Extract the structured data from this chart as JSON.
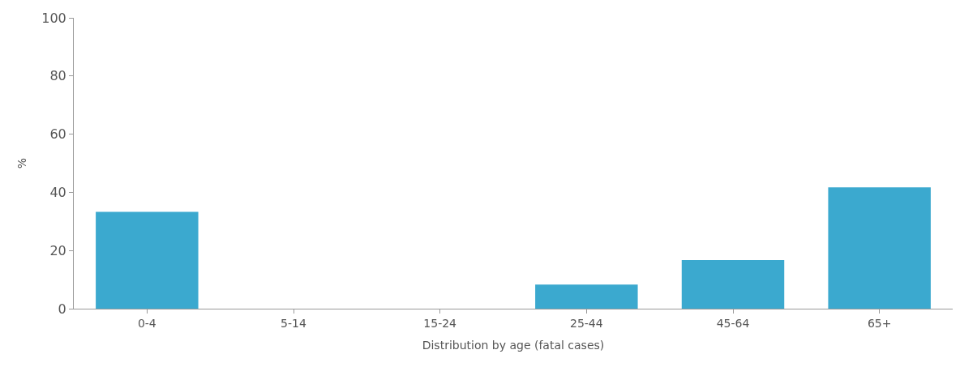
{
  "chart_data": {
    "type": "bar",
    "xlabel": "Distribution by age (fatal cases)",
    "ylabel": "%",
    "categories": [
      "0-4",
      "5-14",
      "15-24",
      "25-44",
      "45-64",
      "65+"
    ],
    "values": [
      33.3,
      0,
      0,
      8.3,
      16.7,
      41.7
    ],
    "color": "#3ba9cf",
    "ylim": [
      0,
      100
    ],
    "yticks": [
      0,
      20,
      40,
      60,
      80,
      100
    ],
    "legend": false
  }
}
